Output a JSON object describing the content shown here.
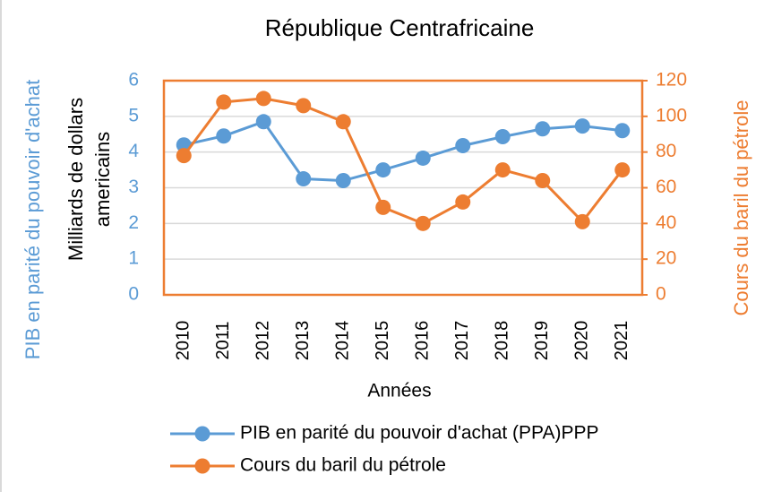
{
  "chart_data": {
    "type": "line",
    "title": "République  Centrafricaine",
    "x_label": "Années",
    "y_label": "PIB en parité du pouvoir d'achat",
    "y_label_inner": [
      "Milliards de dollars",
      "americains"
    ],
    "y2_label": "Cours du baril du pétrole",
    "categories": [
      "2010",
      "2011",
      "2012",
      "2013",
      "2014",
      "2015",
      "2016",
      "2017",
      "2018",
      "2019",
      "2020",
      "2021"
    ],
    "series": [
      {
        "name": "PIB  en parité du pouvoir d'achat (PPA)PPP",
        "color": "#5b9bd5",
        "values": [
          4.2,
          4.45,
          4.85,
          3.25,
          3.2,
          3.5,
          3.83,
          4.18,
          4.43,
          4.65,
          4.73,
          4.6
        ]
      },
      {
        "name": "Cours du baril du pétrole",
        "color": "#ed7d31",
        "axis": "y2",
        "values": [
          78,
          108,
          110,
          106,
          97,
          49,
          40,
          52,
          70,
          64,
          41,
          70
        ]
      }
    ],
    "ylim": [
      0,
      6
    ],
    "yticks": [
      0,
      1,
      2,
      3,
      4,
      5,
      6
    ],
    "y2lim": [
      0,
      120
    ],
    "y2ticks": [
      0,
      20,
      40,
      60,
      80,
      100,
      120
    ],
    "grid": true,
    "legend": "bottom"
  }
}
